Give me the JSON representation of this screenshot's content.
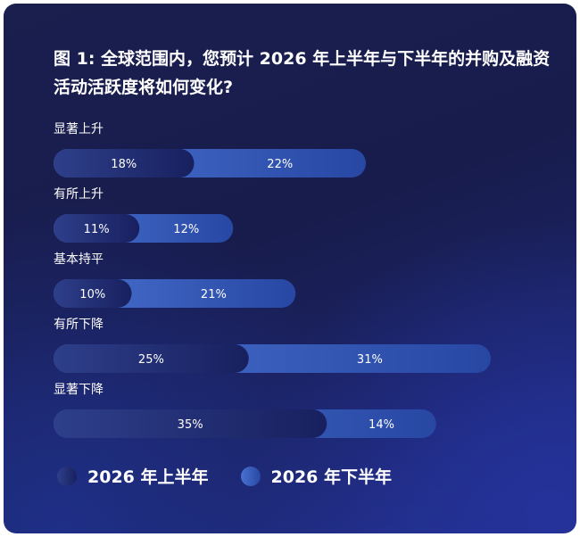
{
  "chart_data": {
    "type": "bar",
    "orientation": "horizontal",
    "stacked": true,
    "title": "图 1: 全球范围内，您预计 2026 年上半年与下半年的并购及融资活动活跃度将如何变化?",
    "categories": [
      "显著上升",
      "有所上升",
      "基本持平",
      "有所下降",
      "显著下降"
    ],
    "series": [
      {
        "name": "2026 年上半年",
        "values": [
          18,
          11,
          10,
          25,
          35
        ],
        "labels": [
          "18%",
          "11%",
          "10%",
          "25%",
          "35%"
        ]
      },
      {
        "name": "2026 年下半年",
        "values": [
          22,
          12,
          21,
          31,
          14
        ],
        "labels": [
          "22%",
          "12%",
          "21%",
          "31%",
          "14%"
        ]
      }
    ],
    "legend_position": "bottom-left",
    "grid": false
  },
  "colors": {
    "series1_start": "#2e3f8a",
    "series1_end": "#1a2366",
    "series2_start": "#3f65c4",
    "series2_end": "#2a4aa8"
  }
}
